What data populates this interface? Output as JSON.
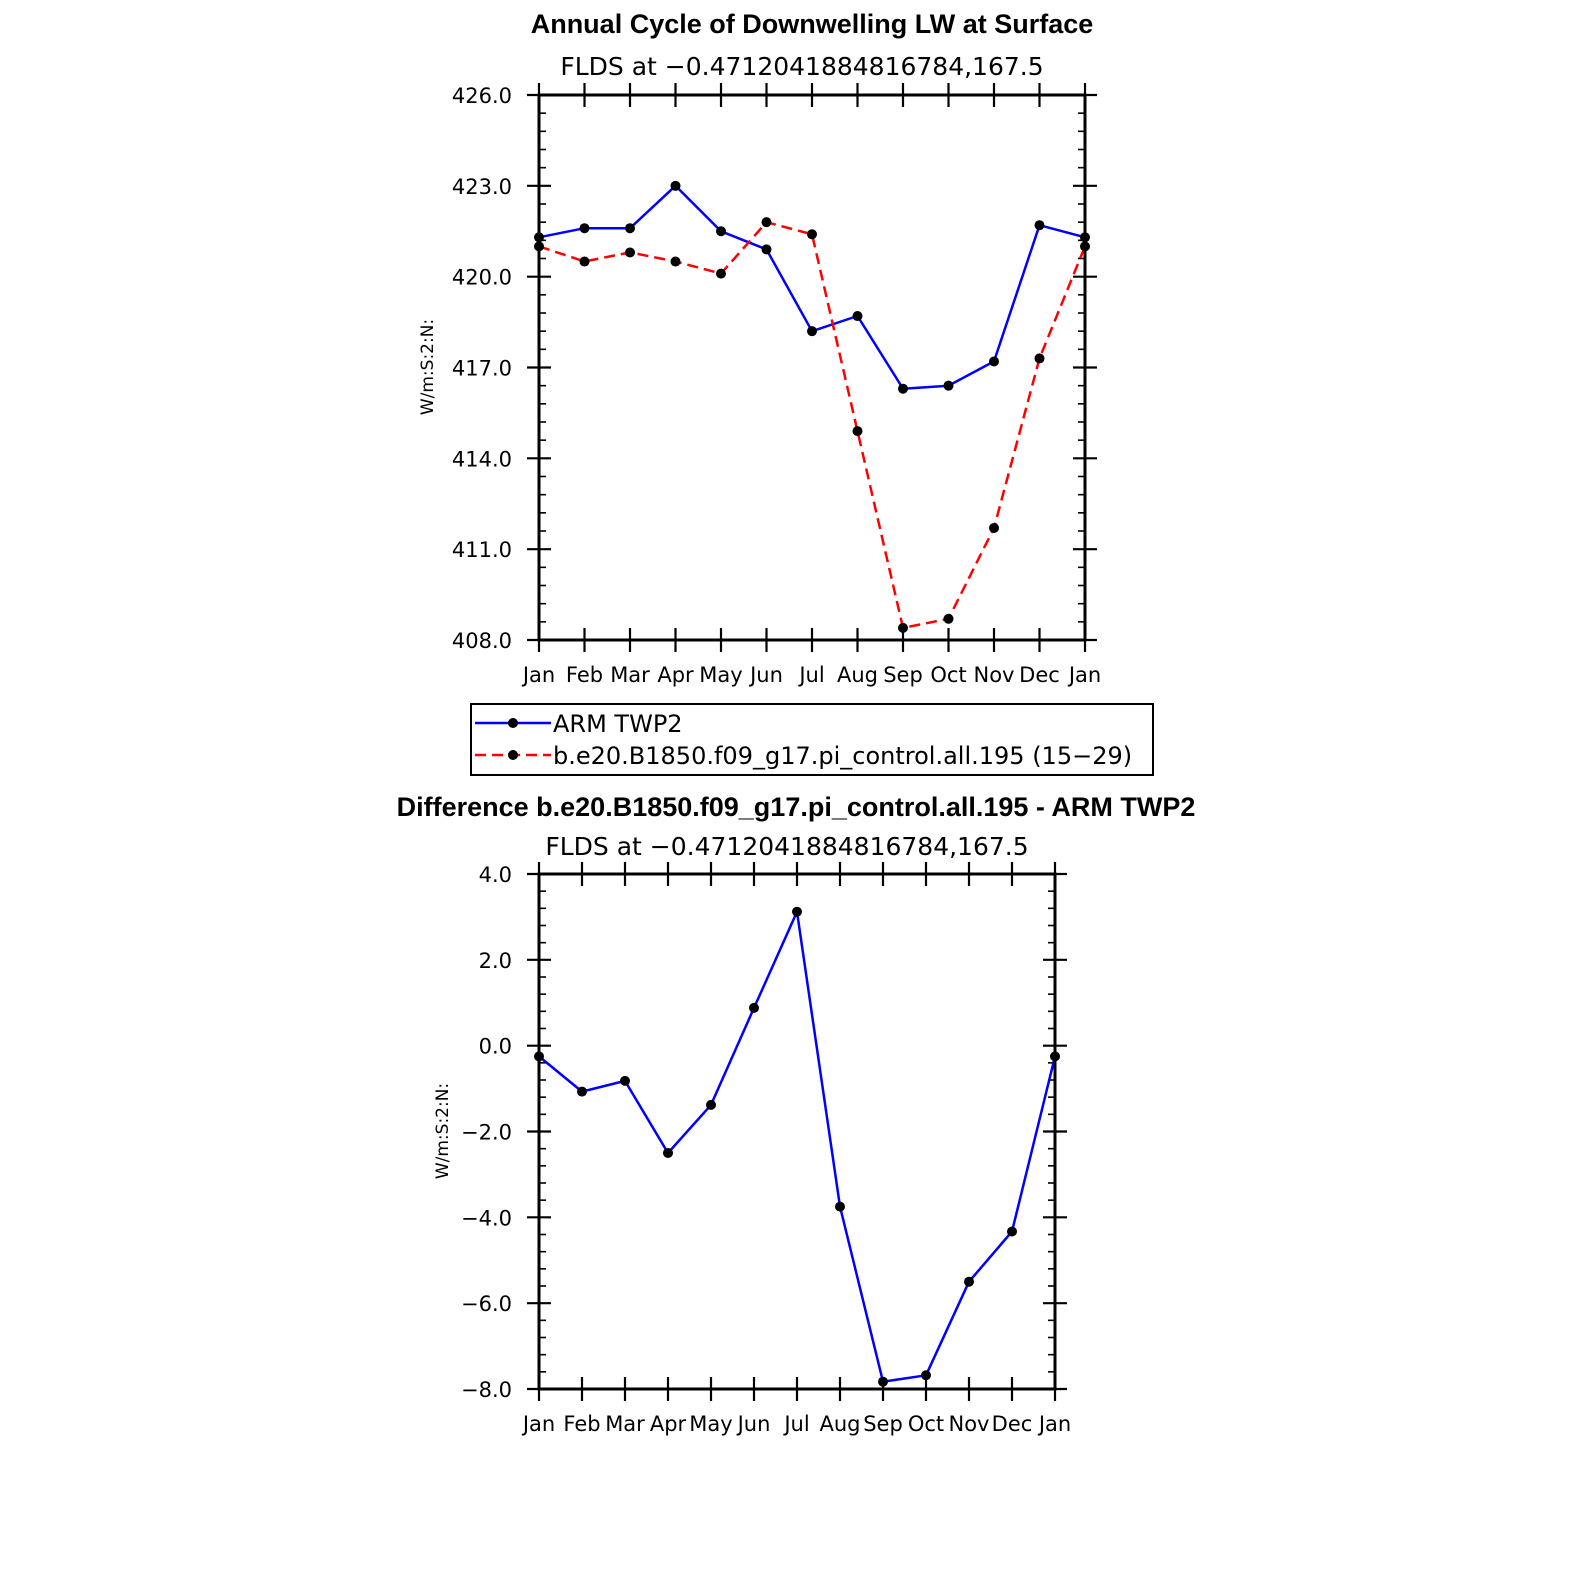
{
  "chart_data": [
    {
      "type": "line",
      "title": "Annual Cycle of Downwelling LW at Surface",
      "subtitle": "FLDS at −0.4712041884816784,167.5",
      "ylabel": "W/m:S:2:N:",
      "categories": [
        "Jan",
        "Feb",
        "Mar",
        "Apr",
        "May",
        "Jun",
        "Jul",
        "Aug",
        "Sep",
        "Oct",
        "Nov",
        "Dec",
        "Jan"
      ],
      "ylim": [
        408.0,
        426.0
      ],
      "yticks": [
        "426.0",
        "423.0",
        "420.0",
        "417.0",
        "414.0",
        "411.0",
        "408.0"
      ],
      "series": [
        {
          "name": "ARM TWP2",
          "color": "#0000ff",
          "dash": "solid",
          "values": [
            421.3,
            421.6,
            421.6,
            423.0,
            421.5,
            420.9,
            418.2,
            418.7,
            416.3,
            416.4,
            417.2,
            421.7,
            421.3
          ]
        },
        {
          "name": "b.e20.B1850.f09_g17.pi_control.all.195 (15−29)",
          "color": "#ff0000",
          "dash": "dashed",
          "values": [
            421.0,
            420.5,
            420.8,
            420.5,
            420.1,
            421.8,
            421.4,
            414.9,
            408.4,
            408.7,
            411.7,
            417.3,
            421.0
          ]
        }
      ],
      "legend": "below"
    },
    {
      "type": "line",
      "title": "Difference b.e20.B1850.f09_g17.pi_control.all.195 - ARM TWP2",
      "subtitle": "FLDS at −0.4712041884816784,167.5",
      "ylabel": "W/m:S:2:N:",
      "categories": [
        "Jan",
        "Feb",
        "Mar",
        "Apr",
        "May",
        "Jun",
        "Jul",
        "Aug",
        "Sep",
        "Oct",
        "Nov",
        "Dec",
        "Jan"
      ],
      "ylim": [
        -8.0,
        4.0
      ],
      "yticks": [
        "4.0",
        "2.0",
        "0.0",
        "−2.0",
        "−4.0",
        "−6.0",
        "−8.0"
      ],
      "series": [
        {
          "color": "#0000ff",
          "dash": "solid",
          "values": [
            -0.25,
            -1.07,
            -0.82,
            -2.5,
            -1.38,
            0.88,
            3.12,
            -3.75,
            -7.83,
            -7.68,
            -5.5,
            -4.33,
            -0.25
          ]
        }
      ]
    }
  ]
}
